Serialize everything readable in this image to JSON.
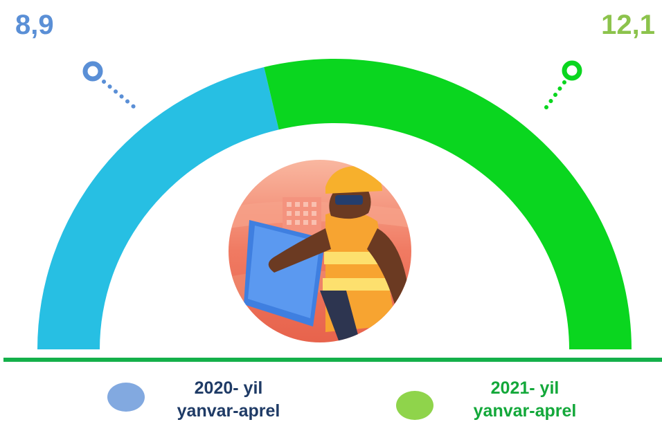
{
  "colors": {
    "series_2020_arc": "#27bfe3",
    "series_2021_arc": "#0ad61f",
    "value_2020_text": "#5a8fd6",
    "value_2021_text": "#8cc34c",
    "legend_2020_dot": "#82a9e0",
    "legend_2021_dot": "#8fd44b",
    "legend_2020_text": "#1f3b66",
    "legend_2021_text": "#13a83a",
    "baseline": "#14b04a"
  },
  "chart_data": {
    "type": "pie",
    "series": [
      {
        "name": "2020- yil yanvar-aprel",
        "value": 8.9,
        "value_label": "8,9"
      },
      {
        "name": "2021- yil yanvar-aprel",
        "value": 12.1,
        "value_label": "12,1"
      }
    ]
  },
  "legend": [
    {
      "line1": "2020- yil",
      "line2": "yanvar-aprel"
    },
    {
      "line1": "2021- yil",
      "line2": "yanvar-aprel"
    }
  ],
  "icons": {
    "left_marker": "ring-marker-icon",
    "right_marker": "ring-marker-icon",
    "center_illustration": "construction-worker-illustration"
  }
}
